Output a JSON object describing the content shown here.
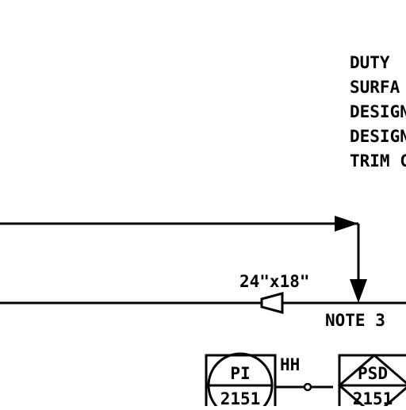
{
  "spec_block": {
    "lines": [
      "DUTY",
      "SURFA",
      "DESIGN",
      "DESIGN",
      "TRIM C"
    ]
  },
  "reducer": {
    "label": "24\"x18\""
  },
  "note": {
    "label": "NOTE 3"
  },
  "instrument_pi": {
    "tag": "PI",
    "number": "2151"
  },
  "alarm": {
    "label": "HH"
  },
  "instrument_psd": {
    "tag": "PSD",
    "number": "2151"
  },
  "colors": {
    "ink": "#000000",
    "paper": "#ffffff"
  }
}
